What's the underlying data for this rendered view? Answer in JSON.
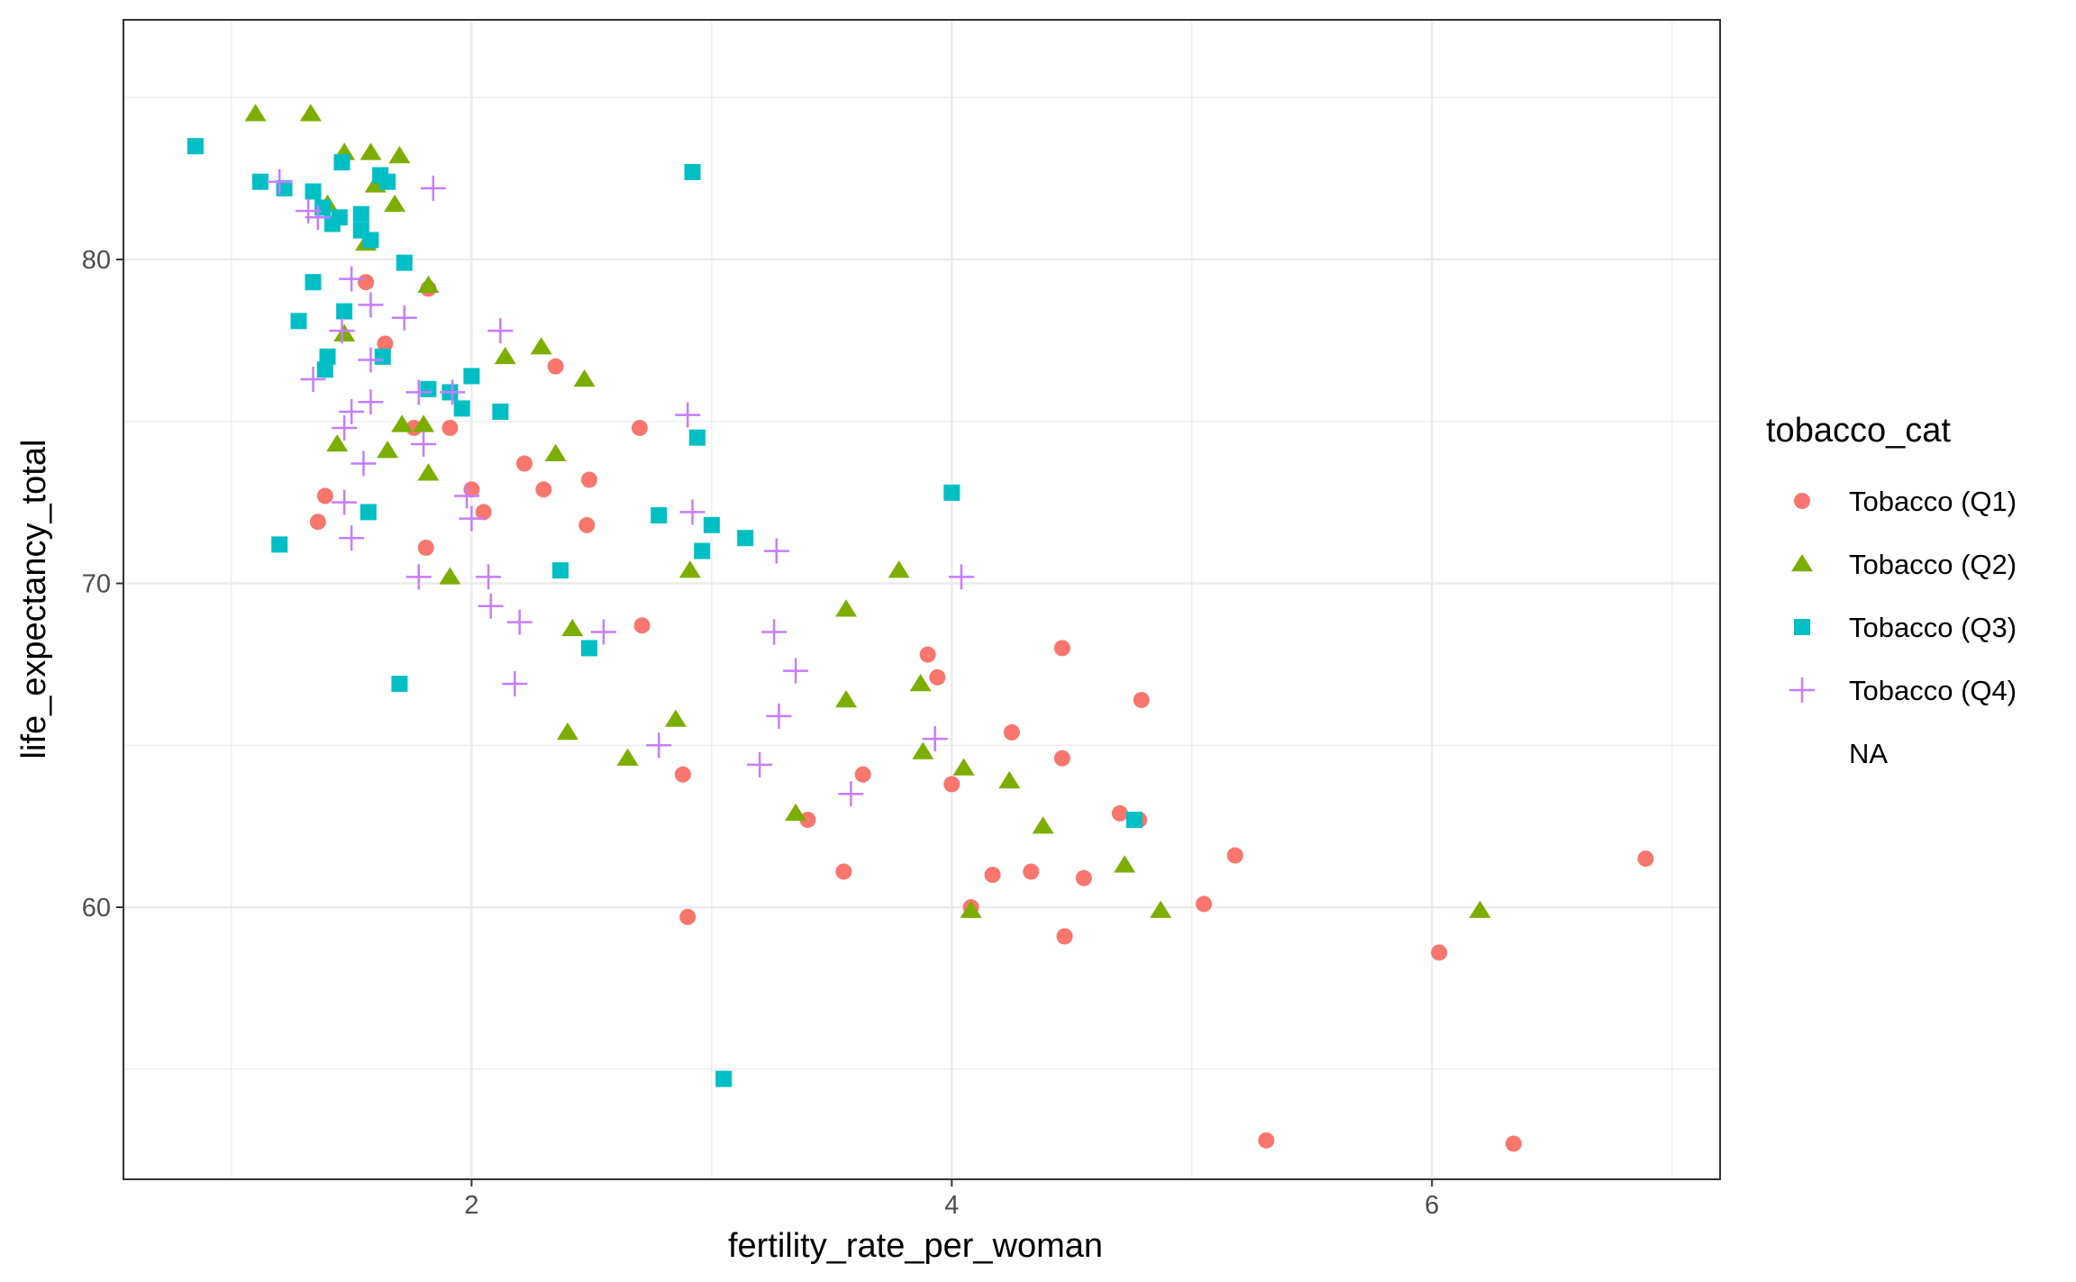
{
  "chart_data": {
    "type": "scatter",
    "title": "",
    "xlabel": "fertility_rate_per_woman",
    "ylabel": "life_expectancy_total",
    "xlim": [
      0.55,
      7.2
    ],
    "ylim": [
      51.6,
      87.4
    ],
    "x_ticks": [
      2,
      4,
      6
    ],
    "y_ticks": [
      60,
      70,
      80
    ],
    "x_tick_labels": [
      "2",
      "4",
      "6"
    ],
    "y_tick_labels": [
      "60",
      "70",
      "80"
    ],
    "grid": true,
    "legend": {
      "title": "tobacco_cat",
      "placement": "right",
      "entries": [
        "Tobacco (Q1)",
        "Tobacco (Q2)",
        "Tobacco (Q3)",
        "Tobacco (Q4)",
        "NA"
      ]
    },
    "series": [
      {
        "name": "Tobacco (Q1)",
        "color": "#F8766D",
        "shape": "circle",
        "points": [
          [
            1.56,
            79.3
          ],
          [
            1.64,
            77.4
          ],
          [
            1.82,
            79.1
          ],
          [
            1.39,
            72.7
          ],
          [
            1.36,
            71.9
          ],
          [
            1.81,
            71.1
          ],
          [
            1.76,
            74.8
          ],
          [
            1.91,
            74.8
          ],
          [
            2.0,
            72.9
          ],
          [
            2.05,
            72.2
          ],
          [
            2.22,
            73.7
          ],
          [
            2.3,
            72.9
          ],
          [
            2.35,
            76.7
          ],
          [
            2.49,
            73.2
          ],
          [
            2.48,
            71.8
          ],
          [
            2.7,
            74.8
          ],
          [
            2.71,
            68.7
          ],
          [
            2.88,
            64.1
          ],
          [
            2.9,
            59.7
          ],
          [
            3.4,
            62.7
          ],
          [
            3.55,
            61.1
          ],
          [
            3.63,
            64.1
          ],
          [
            3.9,
            67.8
          ],
          [
            3.94,
            67.1
          ],
          [
            4.0,
            63.8
          ],
          [
            4.08,
            60.0
          ],
          [
            4.17,
            61.0
          ],
          [
            4.25,
            65.4
          ],
          [
            4.33,
            61.1
          ],
          [
            4.46,
            68.0
          ],
          [
            4.46,
            64.6
          ],
          [
            4.47,
            59.1
          ],
          [
            4.55,
            60.9
          ],
          [
            4.7,
            62.9
          ],
          [
            4.78,
            62.7
          ],
          [
            4.79,
            66.4
          ],
          [
            5.05,
            60.1
          ],
          [
            5.18,
            61.6
          ],
          [
            5.31,
            52.8
          ],
          [
            6.03,
            58.6
          ],
          [
            6.34,
            52.7
          ],
          [
            6.89,
            61.5
          ]
        ]
      },
      {
        "name": "Tobacco (Q2)",
        "color": "#7CAE00",
        "shape": "triangle",
        "points": [
          [
            1.1,
            84.5
          ],
          [
            1.33,
            84.5
          ],
          [
            1.47,
            83.3
          ],
          [
            1.58,
            83.3
          ],
          [
            1.7,
            83.2
          ],
          [
            1.6,
            82.3
          ],
          [
            1.4,
            81.7
          ],
          [
            1.68,
            81.7
          ],
          [
            1.56,
            80.5
          ],
          [
            1.82,
            79.2
          ],
          [
            1.47,
            77.7
          ],
          [
            2.14,
            77.0
          ],
          [
            2.29,
            77.3
          ],
          [
            2.47,
            76.3
          ],
          [
            1.44,
            74.3
          ],
          [
            1.65,
            74.1
          ],
          [
            1.71,
            74.9
          ],
          [
            1.8,
            74.9
          ],
          [
            1.82,
            73.4
          ],
          [
            2.35,
            74.0
          ],
          [
            1.91,
            70.2
          ],
          [
            2.42,
            68.6
          ],
          [
            2.91,
            70.4
          ],
          [
            3.56,
            69.2
          ],
          [
            3.78,
            70.4
          ],
          [
            2.4,
            65.4
          ],
          [
            2.65,
            64.6
          ],
          [
            2.85,
            65.8
          ],
          [
            3.35,
            62.9
          ],
          [
            3.56,
            66.4
          ],
          [
            3.87,
            66.9
          ],
          [
            3.88,
            64.8
          ],
          [
            4.05,
            64.3
          ],
          [
            4.08,
            59.9
          ],
          [
            4.24,
            63.9
          ],
          [
            4.38,
            62.5
          ],
          [
            4.72,
            61.3
          ],
          [
            4.87,
            59.9
          ],
          [
            6.2,
            59.9
          ]
        ]
      },
      {
        "name": "Tobacco (Q3)",
        "color": "#00BFC4",
        "shape": "square",
        "points": [
          [
            0.85,
            83.5
          ],
          [
            1.12,
            82.4
          ],
          [
            1.22,
            82.2
          ],
          [
            1.34,
            82.1
          ],
          [
            1.38,
            81.6
          ],
          [
            1.42,
            81.1
          ],
          [
            1.45,
            81.3
          ],
          [
            1.54,
            81.4
          ],
          [
            1.54,
            80.9
          ],
          [
            1.58,
            80.6
          ],
          [
            1.46,
            83.0
          ],
          [
            1.62,
            82.6
          ],
          [
            1.65,
            82.4
          ],
          [
            1.34,
            79.3
          ],
          [
            1.72,
            79.9
          ],
          [
            1.28,
            78.1
          ],
          [
            1.47,
            78.4
          ],
          [
            1.4,
            77.0
          ],
          [
            1.39,
            76.6
          ],
          [
            1.63,
            77.0
          ],
          [
            1.82,
            76.0
          ],
          [
            1.91,
            75.9
          ],
          [
            1.96,
            75.4
          ],
          [
            2.0,
            76.4
          ],
          [
            2.12,
            75.3
          ],
          [
            1.57,
            72.2
          ],
          [
            1.2,
            71.2
          ],
          [
            2.37,
            70.4
          ],
          [
            2.49,
            68.0
          ],
          [
            1.7,
            66.9
          ],
          [
            2.78,
            72.1
          ],
          [
            2.94,
            74.5
          ],
          [
            2.96,
            71.0
          ],
          [
            3.0,
            71.8
          ],
          [
            3.14,
            71.4
          ],
          [
            2.92,
            82.7
          ],
          [
            4.0,
            72.8
          ],
          [
            3.05,
            54.7
          ],
          [
            4.76,
            62.7
          ]
        ]
      },
      {
        "name": "Tobacco (Q4)",
        "color": "#C77CFF",
        "shape": "plus",
        "points": [
          [
            1.2,
            82.4
          ],
          [
            1.32,
            81.5
          ],
          [
            1.36,
            81.3
          ],
          [
            1.84,
            82.2
          ],
          [
            1.5,
            79.4
          ],
          [
            1.58,
            78.6
          ],
          [
            1.72,
            78.2
          ],
          [
            1.46,
            77.8
          ],
          [
            2.12,
            77.8
          ],
          [
            1.58,
            76.9
          ],
          [
            1.34,
            76.3
          ],
          [
            1.58,
            75.6
          ],
          [
            1.5,
            75.3
          ],
          [
            1.47,
            74.8
          ],
          [
            1.78,
            75.9
          ],
          [
            1.92,
            75.9
          ],
          [
            1.8,
            74.3
          ],
          [
            1.55,
            73.7
          ],
          [
            1.47,
            72.5
          ],
          [
            1.5,
            71.4
          ],
          [
            1.98,
            72.7
          ],
          [
            2.0,
            72.0
          ],
          [
            1.78,
            70.2
          ],
          [
            2.07,
            70.2
          ],
          [
            2.08,
            69.3
          ],
          [
            2.2,
            68.8
          ],
          [
            2.55,
            68.5
          ],
          [
            2.18,
            66.9
          ],
          [
            2.9,
            75.2
          ],
          [
            2.92,
            72.2
          ],
          [
            3.27,
            71.0
          ],
          [
            2.78,
            65.0
          ],
          [
            3.2,
            64.4
          ],
          [
            3.28,
            65.9
          ],
          [
            3.26,
            68.5
          ],
          [
            3.35,
            67.3
          ],
          [
            3.58,
            63.5
          ],
          [
            3.93,
            65.2
          ],
          [
            4.04,
            70.2
          ]
        ]
      }
    ]
  }
}
